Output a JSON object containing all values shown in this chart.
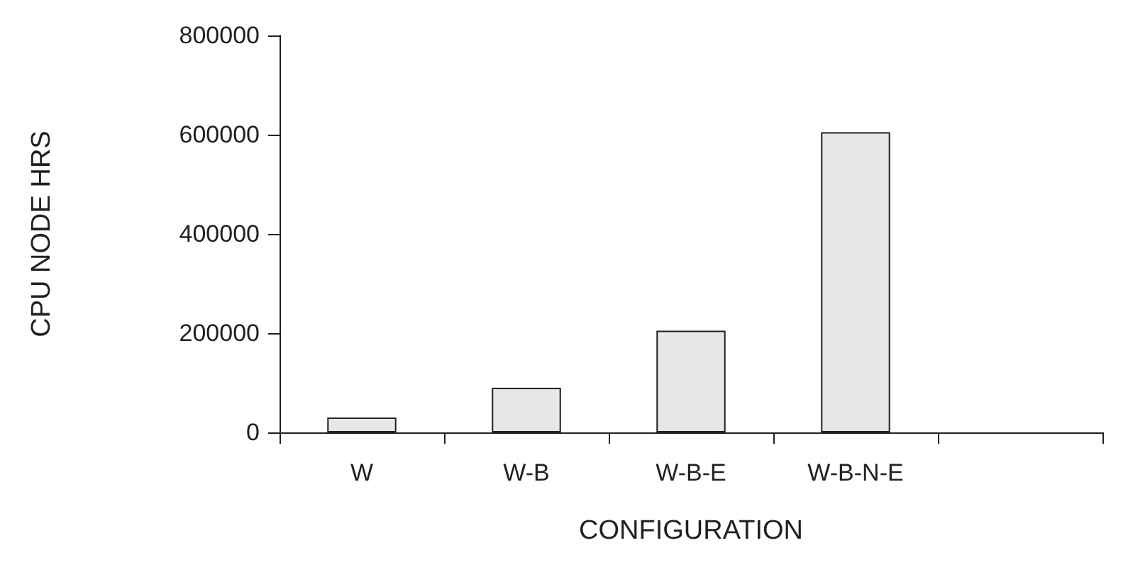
{
  "chart_data": {
    "type": "bar",
    "xlabel": "CONFIGURATION",
    "ylabel": "CPU NODE HRS",
    "categories": [
      "W",
      "W-B",
      "W-B-E",
      "W-B-N-E",
      null
    ],
    "values": [
      30000,
      90000,
      205000,
      605000,
      null
    ],
    "color": "#e6e7e8",
    "ylim": [
      0,
      800000
    ],
    "yticks": [
      0,
      200000,
      400000,
      600000,
      800000
    ],
    "grid": false
  }
}
